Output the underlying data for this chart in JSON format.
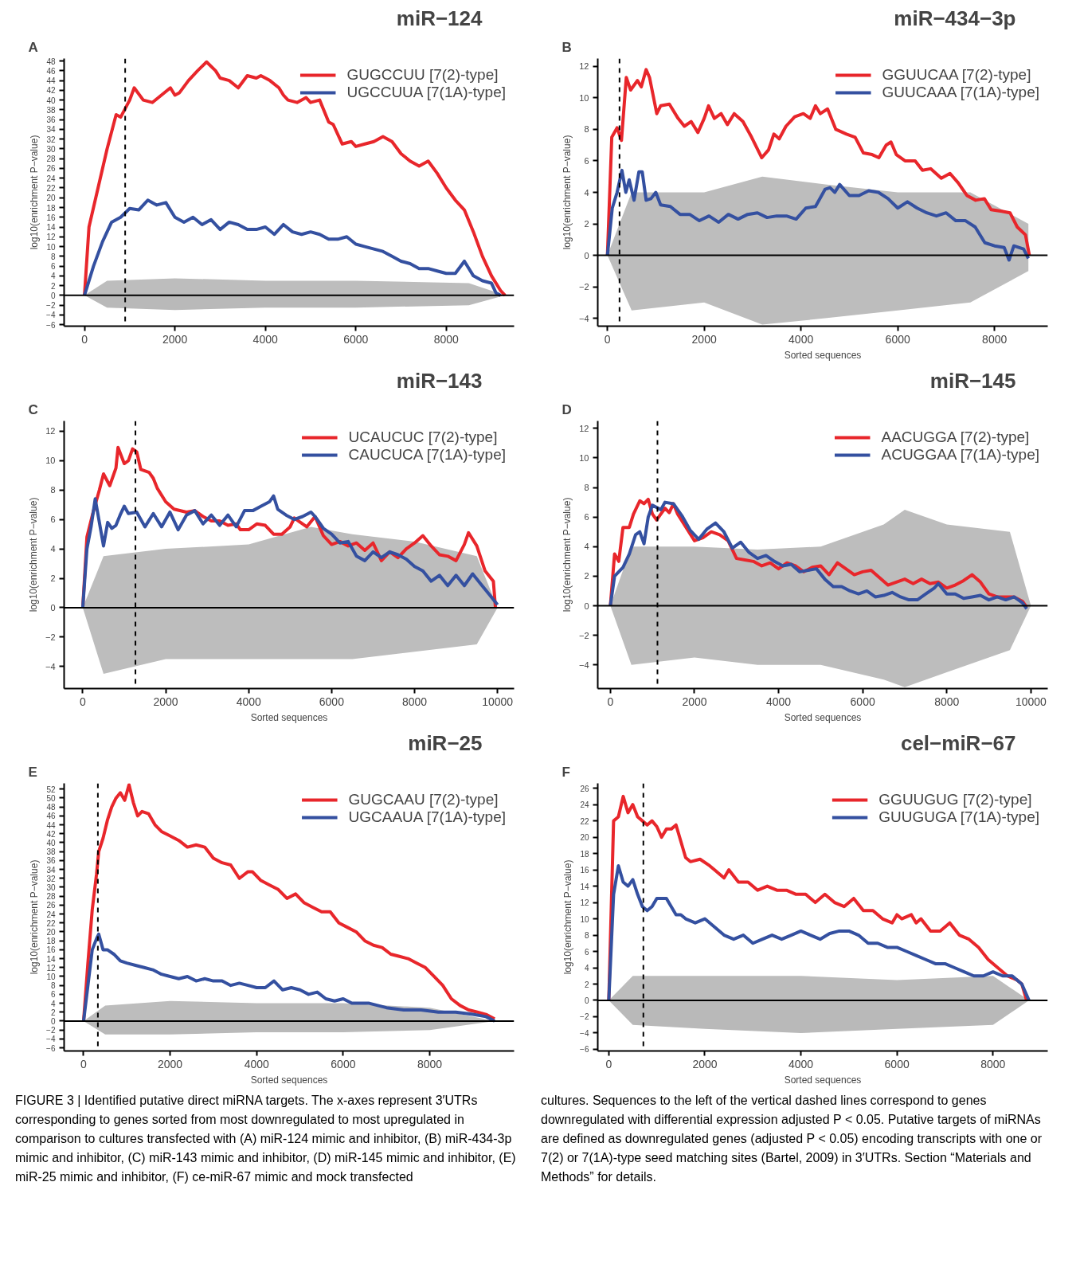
{
  "chart_data": [
    {
      "type": "line",
      "title": "miR−124",
      "ylabel": "log10(enrichment P−value)",
      "annotations": [
        "A"
      ],
      "xlim": [
        -450,
        9500
      ],
      "xticks": [
        0,
        2000,
        4000,
        6000,
        8000
      ],
      "ylim": [
        -6.3,
        48.5
      ],
      "yticks": [
        -6,
        -4,
        -2,
        0,
        2,
        4,
        6,
        8,
        10,
        12,
        14,
        16,
        18,
        20,
        22,
        24,
        26,
        28,
        30,
        32,
        34,
        36,
        38,
        40,
        42,
        44,
        46,
        48
      ],
      "legend": "top right",
      "grid": false,
      "line_style": "solid",
      "marker": "none",
      "ref_lines": [
        {
          "axis": "y",
          "value": 0,
          "color": "#000000",
          "line_style": "solid"
        },
        {
          "axis": "x",
          "value": 900,
          "color": "#000000",
          "line_style": "dashed"
        }
      ],
      "series": [
        {
          "type": "area",
          "color": "#bdbdbd",
          "x": [
            0,
            500,
            2000,
            4000,
            6000,
            8500,
            9300
          ],
          "values": [
            0,
            3,
            3.5,
            3,
            3,
            2.5,
            0
          ]
        },
        {
          "type": "area",
          "color": "#b9b9b9",
          "x": [
            0,
            500,
            2000,
            4000,
            6000,
            8500,
            9300
          ],
          "values": [
            0,
            -2.5,
            -3,
            -2.5,
            -2.5,
            -2,
            0
          ]
        },
        {
          "name": "GUGCCUU [7(2)-type]",
          "color": "#e8262b",
          "x": [
            0,
            100,
            300,
            500,
            700,
            800,
            1000,
            1100,
            1300,
            1500,
            1700,
            1900,
            2000,
            2100,
            2300,
            2500,
            2700,
            2900,
            3000,
            3200,
            3400,
            3600,
            3800,
            3900,
            4100,
            4300,
            4400,
            4500,
            4700,
            4900,
            5000,
            5200,
            5400,
            5500,
            5700,
            5900,
            6000,
            6200,
            6400,
            6600,
            6800,
            7000,
            7200,
            7400,
            7600,
            7800,
            8000,
            8200,
            8400,
            8600,
            8800,
            9000,
            9200,
            9300
          ],
          "values": [
            0,
            14,
            22,
            30,
            37,
            36.5,
            40,
            42.5,
            40,
            39.5,
            41,
            42.5,
            41,
            41.5,
            44,
            46,
            47.8,
            46,
            44.5,
            44,
            42.5,
            45,
            44.5,
            45,
            44,
            42.5,
            41,
            40,
            39.5,
            40.5,
            39.5,
            40,
            35.5,
            35,
            31,
            31.5,
            30.5,
            31,
            31.5,
            32.5,
            31.5,
            29,
            27.5,
            26.5,
            27.5,
            25,
            22,
            19.5,
            17.5,
            13,
            8,
            4,
            1,
            0
          ]
        },
        {
          "name": "UGCCUUA [7(1A)-type]",
          "color": "#3450a0",
          "x": [
            0,
            200,
            400,
            600,
            800,
            1000,
            1200,
            1400,
            1600,
            1800,
            2000,
            2200,
            2400,
            2600,
            2800,
            3000,
            3200,
            3400,
            3600,
            3800,
            4000,
            4200,
            4400,
            4600,
            4800,
            5000,
            5200,
            5400,
            5600,
            5800,
            6000,
            6200,
            6400,
            6600,
            6800,
            7000,
            7200,
            7400,
            7600,
            7800,
            8000,
            8200,
            8400,
            8600,
            8800,
            9000,
            9100,
            9200
          ],
          "values": [
            0,
            6,
            11,
            15,
            16,
            17.8,
            17.5,
            19.5,
            18.5,
            19,
            16,
            15,
            16,
            14.5,
            15.5,
            13.5,
            15,
            14.5,
            13.5,
            13.5,
            14,
            12.5,
            14.5,
            13,
            12.5,
            13,
            12.5,
            11.5,
            11.5,
            12,
            10.5,
            10,
            9.5,
            9,
            8,
            7,
            6.5,
            5.5,
            5.5,
            5,
            4.5,
            4.5,
            7,
            4,
            3,
            2.5,
            0.5,
            0
          ]
        }
      ]
    },
    {
      "type": "line",
      "title": "miR−434−3p",
      "xlabel": "Sorted sequences",
      "ylabel": "log10(enrichment P−value)",
      "annotations": [
        "B"
      ],
      "xlim": [
        -200,
        9100
      ],
      "xticks": [
        0,
        2000,
        4000,
        6000,
        8000
      ],
      "ylim": [
        -4.5,
        12.5
      ],
      "yticks": [
        -4,
        -2,
        0,
        2,
        4,
        6,
        8,
        10,
        12
      ],
      "legend": "top right",
      "grid": false,
      "line_style": "solid",
      "marker": "none",
      "ref_lines": [
        {
          "axis": "y",
          "value": 0,
          "color": "#000000",
          "line_style": "solid"
        },
        {
          "axis": "x",
          "value": 250,
          "color": "#000000",
          "line_style": "dashed"
        }
      ],
      "series": [
        {
          "type": "area",
          "color": "#bdbdbd",
          "x": [
            0,
            500,
            2000,
            3200,
            4500,
            6000,
            7500,
            8700
          ],
          "values": [
            0,
            4,
            4,
            5,
            4.5,
            4,
            4,
            2
          ]
        },
        {
          "type": "area",
          "color": "#bdbdbd",
          "x": [
            0,
            500,
            2000,
            3200,
            4500,
            6000,
            7500,
            8700
          ],
          "values": [
            0,
            -3.5,
            -3,
            -4.4,
            -4,
            -3.5,
            -3,
            -1
          ]
        },
        {
          "name": "GGUUCAA [7(2)-type]",
          "color": "#e8262b",
          "x": [
            0,
            90,
            200,
            290,
            390,
            480,
            620,
            700,
            800,
            870,
            1020,
            1100,
            1280,
            1460,
            1590,
            1730,
            1870,
            2000,
            2090,
            2210,
            2350,
            2480,
            2620,
            2800,
            2980,
            3190,
            3330,
            3440,
            3550,
            3690,
            3870,
            4050,
            4190,
            4300,
            4400,
            4550,
            4720,
            4940,
            5120,
            5290,
            5470,
            5610,
            5760,
            5860,
            5970,
            6150,
            6360,
            6510,
            6680,
            6900,
            7080,
            7250,
            7430,
            7610,
            7790,
            7930,
            8150,
            8320,
            8470,
            8640,
            8720
          ],
          "values": [
            0,
            7.5,
            8.1,
            7.3,
            11.3,
            10.5,
            11.1,
            10.7,
            11.8,
            11.3,
            9,
            9.5,
            9.6,
            8.7,
            8.2,
            8.5,
            7.8,
            8.7,
            9.5,
            8.7,
            9,
            8.3,
            9,
            8.5,
            7.5,
            6.2,
            6.7,
            7.7,
            7.4,
            8.2,
            8.8,
            9,
            8.7,
            9.5,
            9,
            9.3,
            8,
            7.7,
            7.5,
            6.5,
            6.4,
            6.2,
            7,
            7.2,
            6.4,
            6,
            6,
            5.4,
            5.5,
            4.9,
            5.2,
            4.6,
            3.8,
            3.5,
            3.6,
            2.9,
            2.8,
            2.7,
            1.8,
            1.3,
            0
          ]
        },
        {
          "name": "GUUCAAA [7(1A)-type]",
          "color": "#3450a0",
          "x": [
            0,
            100,
            200,
            300,
            380,
            450,
            550,
            650,
            720,
            800,
            900,
            1000,
            1100,
            1300,
            1500,
            1700,
            1900,
            2100,
            2300,
            2500,
            2700,
            2900,
            3100,
            3300,
            3500,
            3700,
            3900,
            4100,
            4300,
            4500,
            4600,
            4700,
            4800,
            5000,
            5200,
            5400,
            5600,
            5800,
            6000,
            6200,
            6400,
            6600,
            6800,
            7000,
            7200,
            7400,
            7600,
            7800,
            8000,
            8200,
            8300,
            8400,
            8500,
            8600,
            8700
          ],
          "values": [
            0,
            3,
            4,
            5.4,
            4,
            4.8,
            3.5,
            5.3,
            5.3,
            3.5,
            3.6,
            4,
            3.2,
            3.1,
            2.6,
            2.6,
            2.2,
            2.5,
            2.1,
            2.6,
            2.3,
            2.6,
            2.7,
            2.4,
            2.5,
            2.5,
            2.3,
            3,
            3.1,
            4.2,
            4.3,
            4,
            4.5,
            3.8,
            3.8,
            4.1,
            4,
            3.6,
            3,
            3.4,
            3,
            2.7,
            2.5,
            2.7,
            2.2,
            2.2,
            1.8,
            0.8,
            0.6,
            0.5,
            -0.3,
            0.6,
            0.5,
            0.4,
            -0.2
          ]
        }
      ]
    },
    {
      "type": "line",
      "title": "miR−143",
      "xlabel": "Sorted sequences",
      "ylabel": "log10(enrichment P−value)",
      "annotations": [
        "C"
      ],
      "xlim": [
        -450,
        10400
      ],
      "xticks": [
        0,
        2000,
        4000,
        6000,
        8000,
        10000
      ],
      "ylim": [
        -5.5,
        12.7
      ],
      "yticks": [
        -4,
        -2,
        0,
        2,
        4,
        6,
        8,
        10,
        12
      ],
      "legend": "top right",
      "grid": false,
      "line_style": "solid",
      "marker": "none",
      "ref_lines": [
        {
          "axis": "y",
          "value": 0,
          "color": "#000000",
          "line_style": "solid"
        },
        {
          "axis": "x",
          "value": 1270,
          "color": "#000000",
          "line_style": "dashed"
        }
      ],
      "series": [
        {
          "type": "area",
          "color": "#bdbdbd",
          "x": [
            0,
            500,
            2000,
            4000,
            5500,
            6500,
            8000,
            9500,
            10000
          ],
          "values": [
            0,
            3.5,
            4,
            4.3,
            5.5,
            5,
            4.5,
            3.5,
            0
          ]
        },
        {
          "type": "area",
          "color": "#bdbdbd",
          "x": [
            0,
            500,
            2000,
            4000,
            5500,
            6500,
            8000,
            9500,
            10000
          ],
          "values": [
            0,
            -4.5,
            -3.5,
            -3.5,
            -3.5,
            -3.5,
            -3,
            -2.5,
            0
          ]
        },
        {
          "name": "UCAUCUC [7(2)-type]",
          "color": "#e8262b",
          "x": [
            0,
            100,
            250,
            400,
            500,
            650,
            800,
            850,
            1000,
            1100,
            1200,
            1300,
            1400,
            1600,
            1700,
            1800,
            2000,
            2200,
            2500,
            2700,
            2900,
            3100,
            3300,
            3500,
            3700,
            3800,
            4000,
            4200,
            4400,
            4600,
            4800,
            5000,
            5100,
            5200,
            5400,
            5600,
            5800,
            6000,
            6200,
            6400,
            6600,
            6800,
            7000,
            7200,
            7400,
            7600,
            7800,
            8000,
            8200,
            8400,
            8600,
            8800,
            9000,
            9200,
            9300,
            9500,
            9700,
            9900,
            9950
          ],
          "values": [
            0,
            4.8,
            6.5,
            8,
            9.1,
            8.3,
            9.5,
            10.9,
            9.8,
            10,
            10.8,
            10.6,
            9.4,
            9.2,
            8.8,
            8.1,
            7.2,
            6.7,
            6.5,
            6.6,
            6.2,
            5.9,
            5.9,
            5.6,
            5.7,
            5.3,
            5.3,
            5.7,
            5.6,
            5,
            5,
            5.5,
            6.1,
            5.9,
            5.5,
            6.2,
            4.9,
            4.3,
            4.5,
            4.2,
            4.4,
            3.9,
            4.4,
            3.2,
            3.8,
            3.4,
            4,
            4.4,
            4.9,
            4.2,
            3.6,
            3.5,
            3.2,
            4.3,
            5.1,
            4.2,
            2.5,
            1.8,
            0
          ]
        },
        {
          "name": "CAUCUCA [7(1A)-type]",
          "color": "#3450a0",
          "x": [
            0,
            100,
            200,
            300,
            400,
            500,
            600,
            700,
            800,
            900,
            1000,
            1100,
            1300,
            1500,
            1700,
            1900,
            2100,
            2300,
            2500,
            2700,
            2900,
            3100,
            3300,
            3500,
            3700,
            3900,
            4100,
            4300,
            4500,
            4600,
            4700,
            4900,
            5100,
            5300,
            5500,
            5600,
            5800,
            6000,
            6200,
            6400,
            6600,
            6800,
            7000,
            7200,
            7400,
            7600,
            7800,
            8000,
            8200,
            8400,
            8600,
            8800,
            9000,
            9200,
            9400,
            9600,
            9800,
            10000
          ],
          "values": [
            0,
            4,
            5.5,
            7.4,
            5.8,
            4.2,
            5.8,
            5.4,
            5.6,
            6.3,
            6.9,
            6.4,
            6.5,
            5.5,
            6.4,
            5.5,
            6.5,
            5.3,
            6.3,
            6.6,
            5.7,
            6.3,
            5.6,
            6.3,
            5.5,
            6.6,
            6.6,
            6.9,
            7.2,
            7.6,
            6.7,
            6.3,
            6,
            6.2,
            6.5,
            6.2,
            5.4,
            5,
            4.4,
            4.5,
            3.5,
            3.2,
            3.8,
            3.4,
            3.8,
            3.6,
            3.3,
            2.8,
            2.5,
            1.8,
            2.2,
            1.5,
            2.2,
            1.5,
            2.3,
            1.6,
            0.9,
            0.2
          ]
        }
      ]
    },
    {
      "type": "line",
      "title": "miR−145",
      "xlabel": "Sorted sequences",
      "ylabel": "log10(enrichment P−value)",
      "annotations": [
        "D"
      ],
      "xlim": [
        -300,
        10400
      ],
      "xticks": [
        0,
        2000,
        4000,
        6000,
        8000,
        10000
      ],
      "ylim": [
        -5.6,
        12.5
      ],
      "yticks": [
        -4,
        -2,
        0,
        2,
        4,
        6,
        8,
        10,
        12
      ],
      "legend": "top right",
      "grid": false,
      "line_style": "solid",
      "marker": "none",
      "ref_lines": [
        {
          "axis": "y",
          "value": 0,
          "color": "#000000",
          "line_style": "solid"
        },
        {
          "axis": "x",
          "value": 1120,
          "color": "#000000",
          "line_style": "dashed"
        }
      ],
      "series": [
        {
          "type": "area",
          "color": "#bdbdbd",
          "x": [
            0,
            500,
            2000,
            3500,
            5000,
            6500,
            7000,
            8000,
            9500,
            10000
          ],
          "values": [
            0,
            4,
            4,
            3.8,
            4,
            5.5,
            6.5,
            5.5,
            5,
            0
          ]
        },
        {
          "type": "area",
          "color": "#bdbdbd",
          "x": [
            0,
            500,
            2000,
            3500,
            5000,
            6500,
            7000,
            8000,
            9500,
            10000
          ],
          "values": [
            0,
            -4,
            -3.5,
            -4,
            -4,
            -5,
            -5.5,
            -4.5,
            -3,
            0
          ]
        },
        {
          "name": "AACUGGA [7(2)-type]",
          "color": "#e8262b",
          "x": [
            0,
            100,
            200,
            300,
            450,
            550,
            700,
            800,
            900,
            1000,
            1100,
            1200,
            1300,
            1400,
            1500,
            1600,
            1800,
            2000,
            2200,
            2400,
            2600,
            2800,
            3000,
            3200,
            3400,
            3600,
            3800,
            4000,
            4200,
            4400,
            4600,
            4800,
            5000,
            5200,
            5400,
            5600,
            5800,
            6000,
            6200,
            6400,
            6600,
            6800,
            7000,
            7200,
            7400,
            7600,
            7800,
            8000,
            8200,
            8400,
            8600,
            8800,
            9000,
            9200,
            9400,
            9600,
            9800,
            9900
          ],
          "values": [
            0,
            3.5,
            3,
            5.3,
            5.3,
            6.2,
            7.1,
            6.9,
            7.2,
            6.2,
            5.8,
            6.2,
            6.6,
            6.3,
            6.9,
            6.2,
            5.3,
            4.4,
            4.6,
            5,
            4.8,
            4.4,
            3.2,
            3.1,
            3,
            2.7,
            2.9,
            2.5,
            2.9,
            2.7,
            2.3,
            2.6,
            2.7,
            2.1,
            2.9,
            2.5,
            2.1,
            2.3,
            2.4,
            1.9,
            1.4,
            1.6,
            1.8,
            1.5,
            1.8,
            1.5,
            1.6,
            1.2,
            1.4,
            1.7,
            2.1,
            1.6,
            0.8,
            0.6,
            0.6,
            0.6,
            0.3,
            -0.1
          ]
        },
        {
          "name": "ACUGGAA [7(1A)-type]",
          "color": "#3450a0",
          "x": [
            0,
            100,
            300,
            450,
            600,
            700,
            800,
            900,
            1000,
            1200,
            1300,
            1500,
            1700,
            1900,
            2100,
            2300,
            2500,
            2700,
            2900,
            3100,
            3300,
            3500,
            3700,
            3900,
            4100,
            4300,
            4500,
            4700,
            4900,
            5100,
            5300,
            5500,
            5700,
            5900,
            6100,
            6300,
            6500,
            6700,
            6900,
            7100,
            7300,
            7500,
            7700,
            7800,
            8000,
            8200,
            8400,
            8600,
            8800,
            9000,
            9200,
            9400,
            9600,
            9800,
            9900
          ],
          "values": [
            0,
            2,
            2.6,
            3.5,
            4.8,
            5,
            4.2,
            6,
            6.8,
            6.5,
            7,
            6.9,
            6.1,
            5.1,
            4.5,
            5.2,
            5.6,
            5,
            3.9,
            4.3,
            3.6,
            3.2,
            3.4,
            3,
            2.7,
            2.8,
            2.3,
            2.4,
            2.5,
            1.8,
            1.3,
            1.3,
            1,
            0.8,
            1,
            0.6,
            0.7,
            0.9,
            0.6,
            0.4,
            0.4,
            0.8,
            1.2,
            1.5,
            0.8,
            0.8,
            0.5,
            0.6,
            0.7,
            0.4,
            0.6,
            0.4,
            0.6,
            0.2,
            -0.2
          ]
        }
      ]
    },
    {
      "type": "line",
      "title": "miR−25",
      "xlabel": "Sorted sequences",
      "ylabel": "log10(enrichment P−value)",
      "annotations": [
        "E"
      ],
      "xlim": [
        -450,
        9950
      ],
      "xticks": [
        0,
        2000,
        4000,
        6000,
        8000
      ],
      "ylim": [
        -6.7,
        53.3
      ],
      "yticks": [
        -6,
        -4,
        -2,
        0,
        2,
        4,
        6,
        8,
        10,
        12,
        14,
        16,
        18,
        20,
        22,
        24,
        26,
        28,
        30,
        32,
        34,
        36,
        38,
        40,
        42,
        44,
        46,
        48,
        50,
        52
      ],
      "legend": "top right",
      "grid": false,
      "line_style": "solid",
      "marker": "none",
      "ref_lines": [
        {
          "axis": "y",
          "value": 0,
          "color": "#000000",
          "line_style": "solid"
        },
        {
          "axis": "x",
          "value": 330,
          "color": "#000000",
          "line_style": "dashed"
        }
      ],
      "series": [
        {
          "type": "area",
          "color": "#bdbdbd",
          "x": [
            0,
            500,
            2000,
            4000,
            6000,
            8000,
            9500
          ],
          "values": [
            0,
            3.5,
            4.5,
            4,
            4,
            3,
            0
          ]
        },
        {
          "type": "area",
          "color": "#b9b9b9",
          "x": [
            0,
            500,
            2000,
            4000,
            6000,
            8000,
            9500
          ],
          "values": [
            0,
            -3,
            -3,
            -2.5,
            -2.5,
            -2,
            0
          ]
        },
        {
          "name": "GUGCAAU [7(2)-type]",
          "color": "#e8262b",
          "x": [
            0,
            100,
            200,
            300,
            350,
            450,
            550,
            650,
            750,
            850,
            950,
            1050,
            1150,
            1250,
            1350,
            1500,
            1650,
            1800,
            2000,
            2200,
            2400,
            2600,
            2800,
            3000,
            3200,
            3400,
            3600,
            3800,
            3900,
            4100,
            4300,
            4500,
            4700,
            4900,
            5100,
            5300,
            5500,
            5700,
            5900,
            6100,
            6300,
            6500,
            6700,
            6900,
            7100,
            7300,
            7500,
            7700,
            7900,
            8100,
            8300,
            8500,
            8700,
            8900,
            9100,
            9300,
            9500
          ],
          "values": [
            0,
            13,
            25,
            33,
            38,
            41,
            45,
            48,
            50,
            51.2,
            49.5,
            53,
            49,
            46,
            47,
            46.5,
            44,
            42.5,
            41.5,
            40.5,
            39,
            39.5,
            39,
            36.5,
            35.5,
            35,
            32,
            33.5,
            33.5,
            31.5,
            30.5,
            29.5,
            27.5,
            28.5,
            26.5,
            25.5,
            24.5,
            24.5,
            22,
            21,
            20,
            18,
            17,
            16.5,
            15,
            14.5,
            14,
            13,
            12,
            10,
            8,
            5,
            3.5,
            2.5,
            2,
            1.5,
            0.5
          ]
        },
        {
          "name": "UGCAAUA [7(1A)-type]",
          "color": "#3450a0",
          "x": [
            0,
            100,
            200,
            300,
            350,
            450,
            550,
            700,
            850,
            1000,
            1200,
            1400,
            1600,
            1800,
            2000,
            2200,
            2400,
            2600,
            2800,
            3000,
            3200,
            3400,
            3600,
            3800,
            4000,
            4200,
            4400,
            4600,
            4800,
            5000,
            5200,
            5400,
            5600,
            5800,
            6000,
            6200,
            6400,
            6600,
            6800,
            7000,
            7400,
            7800,
            8200,
            8600,
            9000,
            9300,
            9500
          ],
          "values": [
            0,
            8,
            16,
            18.5,
            19.5,
            16,
            16,
            15,
            13.5,
            13,
            12.5,
            12,
            11.5,
            10.5,
            10,
            9.5,
            10,
            9,
            9.5,
            9,
            9,
            8,
            8.5,
            8,
            7.5,
            7.5,
            9,
            7,
            7.5,
            7,
            6,
            6.5,
            5,
            4.5,
            5,
            4,
            4,
            4,
            3.5,
            3,
            2.5,
            2.5,
            2,
            2,
            1.5,
            1,
            0
          ]
        }
      ]
    },
    {
      "type": "line",
      "title": "cel−miR−67",
      "xlabel": "Sorted sequences",
      "ylabel": "log10(enrichment P−value)",
      "annotations": [
        "F"
      ],
      "xlim": [
        -230,
        9140
      ],
      "xticks": [
        0,
        2000,
        4000,
        6000,
        8000
      ],
      "ylim": [
        -6.2,
        26.6
      ],
      "yticks": [
        -6,
        -4,
        -2,
        0,
        2,
        4,
        6,
        8,
        10,
        12,
        14,
        16,
        18,
        20,
        22,
        24,
        26
      ],
      "legend": "top right",
      "grid": false,
      "line_style": "solid",
      "marker": "none",
      "ref_lines": [
        {
          "axis": "y",
          "value": 0,
          "color": "#000000",
          "line_style": "solid"
        },
        {
          "axis": "x",
          "value": 720,
          "color": "#000000",
          "line_style": "dashed"
        }
      ],
      "series": [
        {
          "type": "area",
          "color": "#bdbdbd",
          "x": [
            0,
            500,
            2000,
            4000,
            6000,
            8000,
            8750
          ],
          "values": [
            0,
            3,
            3,
            3,
            2.5,
            3,
            0
          ]
        },
        {
          "type": "area",
          "color": "#b9b9b9",
          "x": [
            0,
            500,
            2000,
            4000,
            6000,
            8000,
            8750
          ],
          "values": [
            0,
            -3,
            -3.5,
            -4,
            -3.5,
            -3,
            0
          ]
        },
        {
          "name": "GGUUGUG [7(2)-type]",
          "color": "#e8262b",
          "x": [
            0,
            100,
            200,
            300,
            400,
            500,
            600,
            700,
            800,
            900,
            1000,
            1100,
            1200,
            1300,
            1400,
            1500,
            1600,
            1700,
            1900,
            2100,
            2200,
            2400,
            2500,
            2700,
            2900,
            3100,
            3300,
            3500,
            3700,
            3900,
            4100,
            4300,
            4500,
            4700,
            4900,
            5100,
            5300,
            5500,
            5700,
            5900,
            6000,
            6100,
            6300,
            6400,
            6500,
            6700,
            6900,
            7100,
            7300,
            7500,
            7700,
            7900,
            8100,
            8300,
            8500,
            8600,
            8700
          ],
          "values": [
            0,
            22,
            22.5,
            25,
            23,
            24,
            22.5,
            22,
            21.5,
            22,
            21.3,
            20,
            21,
            21,
            21.5,
            19.5,
            17.5,
            17,
            17.3,
            16.5,
            16,
            15,
            16,
            14.5,
            14.5,
            13.5,
            14,
            13.5,
            13.5,
            13,
            13,
            12,
            13,
            12,
            11.5,
            12.5,
            11,
            11,
            10,
            9.5,
            10.5,
            10,
            10.5,
            9.5,
            10,
            8.5,
            8.5,
            9.5,
            8,
            7.5,
            6.5,
            5,
            4,
            3,
            2.5,
            2,
            0
          ]
        },
        {
          "name": "GUUGUGA [7(1A)-type]",
          "color": "#3450a0",
          "x": [
            0,
            100,
            200,
            300,
            400,
            500,
            600,
            700,
            800,
            900,
            1000,
            1100,
            1200,
            1300,
            1400,
            1500,
            1600,
            1800,
            2000,
            2200,
            2400,
            2600,
            2800,
            3000,
            3200,
            3400,
            3600,
            3800,
            4000,
            4200,
            4400,
            4600,
            4800,
            5000,
            5200,
            5400,
            5600,
            5800,
            6000,
            6200,
            6400,
            6600,
            6800,
            7000,
            7200,
            7400,
            7600,
            7800,
            8000,
            8200,
            8400,
            8600,
            8750
          ],
          "values": [
            0,
            13,
            16.5,
            14.5,
            14,
            14.8,
            13,
            11.5,
            11,
            11.5,
            12.5,
            12.5,
            12.5,
            11.5,
            10.5,
            10.5,
            10,
            9.5,
            10,
            9,
            8,
            7.5,
            8,
            7,
            7.5,
            8,
            7.5,
            8,
            8.5,
            8,
            7.5,
            8.2,
            8.5,
            8.5,
            8,
            7,
            7,
            6.5,
            6.5,
            6,
            5.5,
            5,
            4.5,
            4.5,
            4,
            3.5,
            3,
            3,
            3.5,
            3,
            3,
            2,
            0
          ]
        }
      ]
    },
    {
      "type": "other",
      "annotations": [
        "FIGURE 3 | Identified putative direct miRNA targets. The x-axes represent 3′UTRs corresponding to genes sorted from most downregulated to most upregulated in comparison to cultures transfected with (A) miR-124 mimic and inhibitor, (B) miR-434-3p mimic and inhibitor, (C) miR-143 mimic and inhibitor, (D) miR-145 mimic and inhibitor, (E) miR-25 mimic and inhibitor, (F) ce-miR-67 mimic and mock transfected",
        "cultures. Sequences to the left of the vertical dashed lines correspond to genes downregulated with differential expression adjusted P < 0.05. Putative targets of miRNAs are defined as downregulated genes (adjusted P < 0.05) encoding transcripts with one or 7(2) or 7(1A)-type seed matching sites (Bartel, 2009) in 3′UTRs. Section “Materials and Methods” for details."
      ]
    }
  ]
}
